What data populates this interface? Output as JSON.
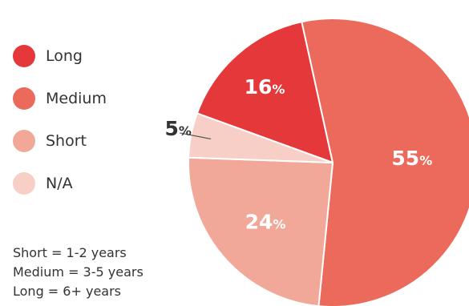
{
  "chart_data": {
    "type": "pie",
    "slices": [
      {
        "label": "Long",
        "value": 16,
        "display": "16",
        "color": "#e5383b"
      },
      {
        "label": "Medium",
        "value": 55,
        "display": "55",
        "color": "#ec6a5c"
      },
      {
        "label": "Short",
        "value": 24,
        "display": "24",
        "color": "#f2a898"
      },
      {
        "label": "N/A",
        "value": 5,
        "display": "5",
        "color": "#f7cfc6"
      }
    ],
    "percent_symbol": "%",
    "legend_placement": "left",
    "notes": [
      "Short = 1-2 years",
      "Medium = 3-5 years",
      "Long = 6+ years"
    ]
  }
}
